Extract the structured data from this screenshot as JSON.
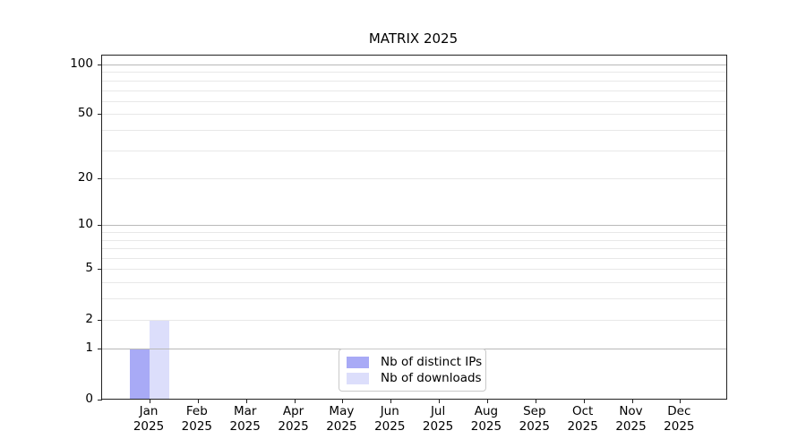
{
  "title": "MATRIX 2025",
  "chart_data": {
    "type": "bar",
    "title": "MATRIX 2025",
    "scale": "log(x+1)",
    "grid": true,
    "legend_position": "lower center",
    "categories": [
      "Jan",
      "Feb",
      "Mar",
      "Apr",
      "May",
      "Jun",
      "Jul",
      "Aug",
      "Sep",
      "Oct",
      "Nov",
      "Dec"
    ],
    "year_label": "2025",
    "series": [
      {
        "name": "Nb of distinct IPs",
        "color": "#a8aaf6",
        "values": [
          1,
          0,
          0,
          0,
          0,
          0,
          0,
          0,
          0,
          0,
          0,
          0
        ]
      },
      {
        "name": "Nb of downloads",
        "color": "#dcdefb",
        "values": [
          2,
          0,
          0,
          0,
          0,
          0,
          0,
          0,
          0,
          0,
          0,
          0
        ]
      }
    ],
    "yticks": [
      0,
      1,
      2,
      5,
      10,
      20,
      50,
      100
    ],
    "ylim": [
      0,
      113
    ],
    "decade_gridlines": [
      1,
      10,
      100
    ],
    "light_gridlines": [
      2,
      3,
      4,
      5,
      6,
      7,
      8,
      9,
      20,
      30,
      40,
      50,
      60,
      70,
      80,
      90
    ],
    "decade_grid_color": "#b9b9b9",
    "light_grid_color": "#e8e8e8",
    "axis_color": "#222222"
  }
}
